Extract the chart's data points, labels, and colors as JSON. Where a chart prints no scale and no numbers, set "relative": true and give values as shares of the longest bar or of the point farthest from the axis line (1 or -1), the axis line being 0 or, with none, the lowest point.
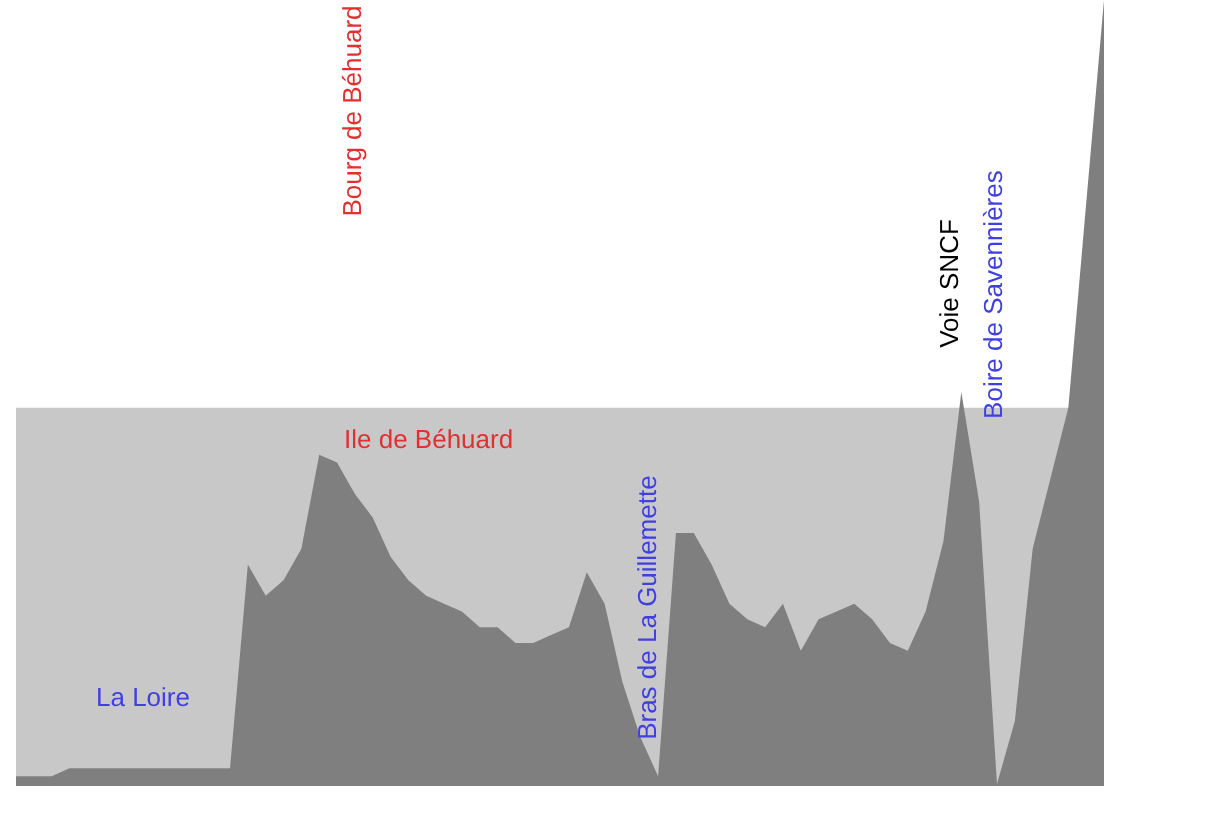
{
  "chart_data": {
    "type": "area",
    "relative": true,
    "categories": [
      null,
      null,
      null,
      null,
      null,
      null,
      null,
      null,
      null,
      null,
      null,
      null,
      null,
      null,
      null,
      null,
      null,
      null,
      null,
      null,
      null,
      null,
      null,
      null,
      null,
      null,
      null,
      null,
      null,
      null,
      null,
      null,
      null,
      null,
      null,
      null,
      null,
      null,
      null,
      null,
      null,
      null,
      null,
      null,
      null,
      null,
      null,
      null,
      null,
      null,
      null,
      null,
      null,
      null,
      null,
      null,
      null,
      null,
      null,
      null,
      null,
      null
    ],
    "series": [
      {
        "color": "#7f7f7f",
        "values": [
          0.01,
          0.01,
          0.01,
          0.02,
          0.02,
          0.02,
          0.02,
          0.02,
          0.02,
          0.02,
          0.02,
          0.02,
          0.02,
          0.28,
          0.24,
          0.26,
          0.3,
          0.42,
          0.41,
          0.37,
          0.34,
          0.29,
          0.26,
          0.24,
          0.23,
          0.22,
          0.2,
          0.2,
          0.18,
          0.18,
          0.19,
          0.2,
          0.27,
          0.23,
          0.13,
          0.06,
          0.01,
          0.32,
          0.32,
          0.28,
          0.23,
          0.21,
          0.2,
          0.23,
          0.17,
          0.21,
          0.22,
          0.23,
          0.21,
          0.18,
          0.17,
          0.22,
          0.31,
          0.5,
          0.36,
          0.0,
          0.08,
          0.3,
          0.39,
          0.48,
          0.74,
          1.0
        ]
      }
    ],
    "bands": [
      {
        "axis": "y",
        "from": 0,
        "to": 0.48,
        "color": "#c8c8c8"
      }
    ],
    "annotations": [
      "Bourg de Béhuard",
      "Ile de Béhuard",
      "Bras de La Guillemette",
      "La Loire",
      "Voie SNCF",
      "Boire de Savennières"
    ]
  }
}
